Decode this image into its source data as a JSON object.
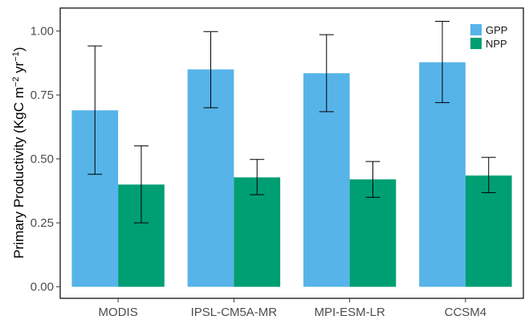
{
  "chart_data": {
    "type": "bar",
    "categories": [
      "MODIS",
      "IPSL-CM5A-MR",
      "MPI-ESM-LR",
      "CCSM4"
    ],
    "series": [
      {
        "name": "GPP",
        "color": "#56b4e9",
        "values": [
          0.69,
          0.85,
          0.835,
          0.878
        ],
        "err_low": [
          0.44,
          0.7,
          0.685,
          0.72
        ],
        "err_high": [
          0.942,
          0.998,
          0.986,
          1.038
        ]
      },
      {
        "name": "NPP",
        "color": "#009e73",
        "values": [
          0.4,
          0.428,
          0.42,
          0.435
        ],
        "err_low": [
          0.25,
          0.36,
          0.35,
          0.368
        ],
        "err_high": [
          0.551,
          0.498,
          0.49,
          0.506
        ]
      }
    ],
    "ylabel_main": "Primary Productivity (KgC m",
    "ylabel_sup1": "−2",
    "ylabel_mid": " yr",
    "ylabel_sup2": "−1",
    "ylabel_end": ")",
    "yticks": [
      "0.00",
      "0.25",
      "0.50",
      "0.75",
      "1.00"
    ],
    "ytick_values": [
      0,
      0.25,
      0.5,
      0.75,
      1.0
    ],
    "ylim": [
      -0.045,
      1.09
    ],
    "grid": false,
    "legend_position": "top-right"
  }
}
